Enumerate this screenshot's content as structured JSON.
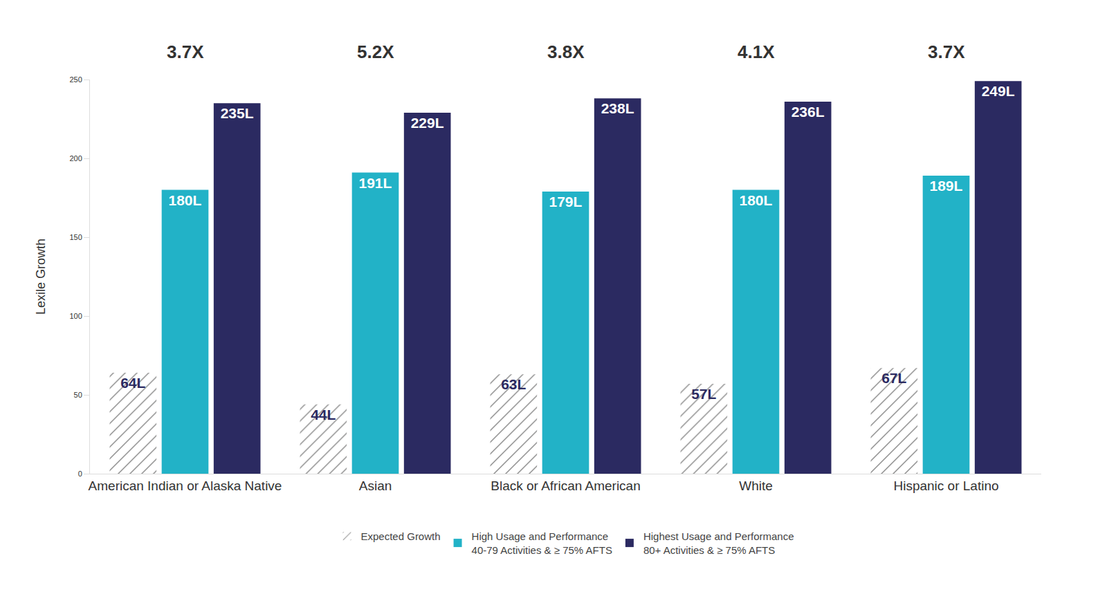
{
  "chart_data": {
    "type": "bar",
    "y_label": "Lexile Growth",
    "categories": [
      "American Indian or Alaska Native",
      "Asian",
      "Black or African American",
      "White",
      "Hispanic or Latino"
    ],
    "annotations": [
      "3.7X",
      "5.2X",
      "3.8X",
      "4.1X",
      "3.7X"
    ],
    "series": [
      {
        "name": "Expected Growth",
        "color": "#8c8c8c",
        "marker": "hatch",
        "values": [
          64,
          44,
          63,
          57,
          67
        ],
        "value_labels": [
          "64L",
          "44L",
          "63L",
          "57L",
          "67L"
        ]
      },
      {
        "name": "High Usage and Performance\n40-79 Activities & ≥ 75% AFTS",
        "color": "#22b2c7",
        "values": [
          180,
          191,
          179,
          180,
          189
        ],
        "value_labels": [
          "180L",
          "191L",
          "179L",
          "180L",
          "189L"
        ]
      },
      {
        "name": "Highest Usage and Performance\n80+ Activities & ≥ 75% AFTS",
        "color": "#2b2a61",
        "values": [
          235,
          229,
          238,
          236,
          249
        ],
        "value_labels": [
          "235L",
          "229L",
          "238L",
          "236L",
          "249L"
        ]
      }
    ],
    "ylim": [
      0,
      250
    ],
    "yticks": [
      0,
      50,
      100,
      150,
      200,
      250
    ],
    "grid": false,
    "legend": "bottom",
    "data_labels": true
  }
}
